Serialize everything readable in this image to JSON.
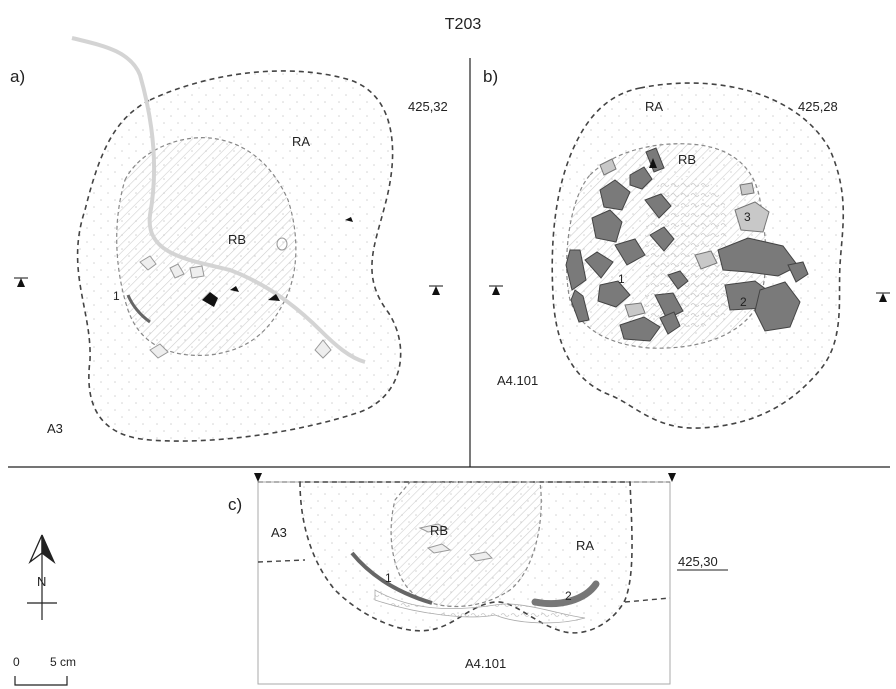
{
  "title": "T203",
  "panels": {
    "a": {
      "label": "a)",
      "elevation": "425,32",
      "zone_outer": "RA",
      "zone_inner": "RB",
      "unit": "A3",
      "find_1": "1"
    },
    "b": {
      "label": "b)",
      "elevation": "425,28",
      "zone_outer": "RA",
      "zone_inner": "RB",
      "unit": "A4.101",
      "find_1": "1",
      "find_2": "2",
      "find_3": "3"
    },
    "c": {
      "label": "c)",
      "unit_top": "A3",
      "zone_inner": "RB",
      "zone_outer": "RA",
      "elevation": "425,30",
      "unit_bottom": "A4.101",
      "find_1": "1",
      "find_2": "2"
    }
  },
  "north_arrow": {
    "label": "N"
  },
  "scale_bar": {
    "start": "0",
    "end": "5 cm"
  },
  "colors": {
    "ink": "#222222",
    "dash": "#444444",
    "stone": "#7a7a7a",
    "stone_light": "#bdbdbd"
  }
}
